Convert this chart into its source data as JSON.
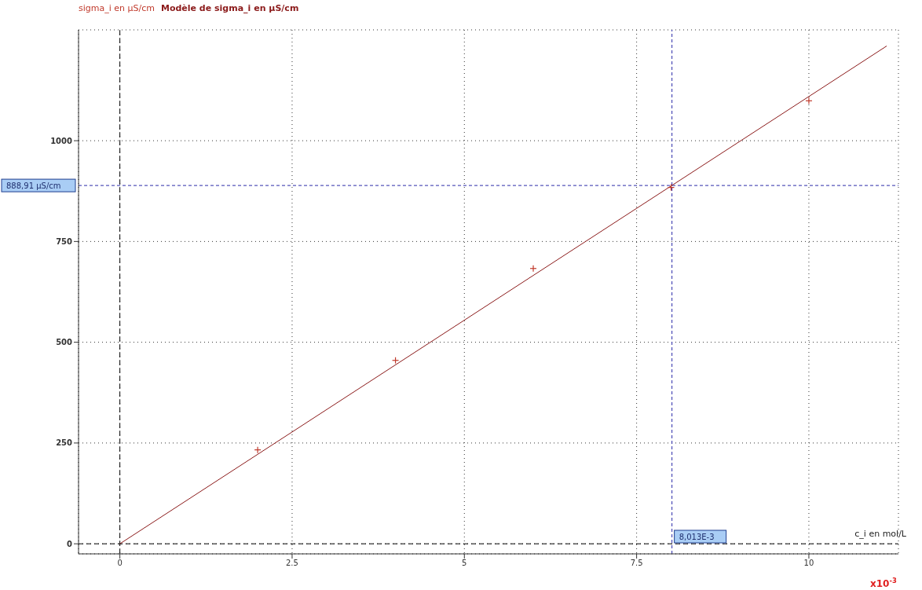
{
  "chart_data": {
    "type": "scatter",
    "xlabel": "c_i en mol/L",
    "annotations": [
      "x10$^{-3}$"
    ],
    "xlim": [
      -0.6,
      11.3
    ],
    "ylim": [
      -25,
      1275
    ],
    "xticks": [
      0,
      2.5,
      5,
      7.5,
      10
    ],
    "yticks": [
      0,
      250,
      500,
      750,
      1000
    ],
    "grid": true,
    "legend": "top left",
    "series": [
      {
        "name": "sigma_i en μS/cm",
        "type": "scatter",
        "marker": "cross",
        "color": "#c0392b",
        "x": [
          2,
          4,
          6,
          8,
          10
        ],
        "values": [
          233,
          455,
          683,
          884,
          1099
        ]
      },
      {
        "name": "Modèle de sigma_i en μS/cm",
        "type": "line",
        "marker": "none",
        "color": "#8b1a1a",
        "x": [
          0,
          11.13
        ],
        "values": [
          0,
          1235
        ]
      }
    ],
    "ref_lines": [
      {
        "axis": "x",
        "value": 8.013,
        "label": "8,013E-3",
        "color": "#2a2aa8",
        "line_style": "dashed"
      },
      {
        "axis": "y",
        "value": 888.91,
        "label": "888,91 μS/cm",
        "color": "#2a2aa8",
        "line_style": "dashed"
      }
    ]
  }
}
